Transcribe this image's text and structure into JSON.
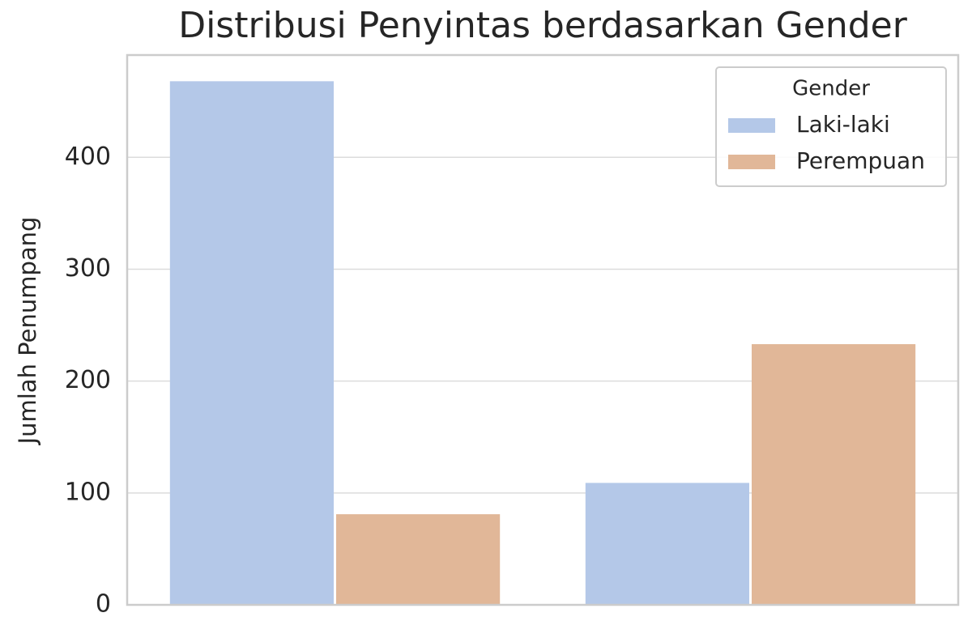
{
  "chart_data": {
    "type": "bar",
    "title": "Distribusi Penyintas berdasarkan Gender",
    "y_label": "Jumlah Penumpang",
    "categories": [
      null,
      null
    ],
    "series": [
      {
        "name": "Laki-laki",
        "color": "#b4c8e8",
        "values": [
          468,
          109
        ]
      },
      {
        "name": "Perempuan",
        "color": "#e1b798",
        "values": [
          81,
          233
        ]
      }
    ],
    "legend_title": "Gender",
    "legend": "upper right",
    "ylim": [
      0,
      491.4
    ],
    "yticks": [
      0,
      100,
      200,
      300,
      400
    ],
    "grid": true
  }
}
